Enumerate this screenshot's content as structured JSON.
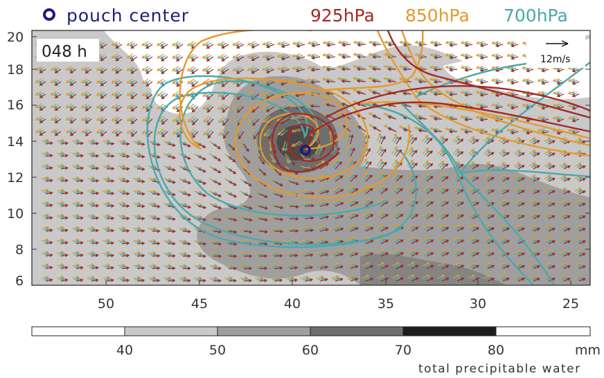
{
  "legend": {
    "pouch_label": "pouch center",
    "levels": [
      {
        "label": "925hPa",
        "color": "#a32a24"
      },
      {
        "label": "850hPa",
        "color": "#e39a2c"
      },
      {
        "label": "700hPa",
        "color": "#4aa8ad"
      }
    ],
    "pouch_color": "#1f1f7a"
  },
  "map": {
    "time_label": "048 h",
    "y_ticks": [
      "20",
      "18",
      "16",
      "14",
      "12",
      "10",
      "8",
      "6"
    ],
    "x_ticks": [
      "50",
      "45",
      "40",
      "35",
      "30",
      "25"
    ],
    "reference_vector_label": "12m/s"
  },
  "colorbar": {
    "ticks": [
      "40",
      "50",
      "60",
      "70",
      "80"
    ],
    "units": "mm",
    "title": "total precipitable water",
    "colors": [
      "#ffffff",
      "#c9c9c9",
      "#9f9f9f",
      "#6e6e6e",
      "#1e1e1e",
      "#ffffff"
    ]
  }
}
